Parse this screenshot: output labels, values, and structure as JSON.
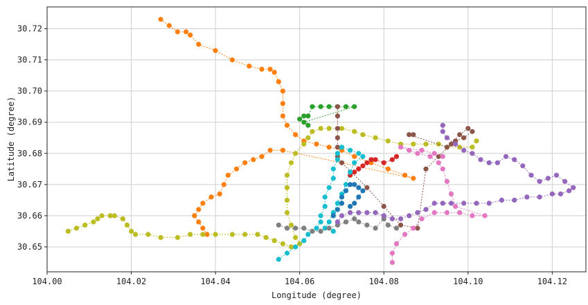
{
  "chart_data": {
    "type": "scatter",
    "title": "",
    "xlabel": "Longitude (degree)",
    "ylabel": "Latitude (degree)",
    "xlim": [
      104.0,
      104.128
    ],
    "ylim": [
      30.642,
      30.727
    ],
    "grid": true,
    "legend": "none",
    "x_ticks": [
      "104.00",
      "104.02",
      "104.04",
      "104.06",
      "104.08",
      "104.10",
      "104.12"
    ],
    "y_ticks": [
      "30.65",
      "30.66",
      "30.67",
      "30.68",
      "30.69",
      "30.70",
      "30.71",
      "30.72"
    ],
    "series": [
      {
        "color": "#ff7f0e",
        "points": [
          [
            104.027,
            30.723
          ],
          [
            104.029,
            30.721
          ],
          [
            104.031,
            30.719
          ],
          [
            104.033,
            30.719
          ],
          [
            104.034,
            30.718
          ],
          [
            104.036,
            30.715
          ],
          [
            104.04,
            30.713
          ],
          [
            104.044,
            30.71
          ],
          [
            104.048,
            30.708
          ],
          [
            104.051,
            30.707
          ],
          [
            104.053,
            30.707
          ],
          [
            104.054,
            30.706
          ],
          [
            104.055,
            30.703
          ],
          [
            104.056,
            30.7
          ],
          [
            104.056,
            30.696
          ],
          [
            104.056,
            30.692
          ],
          [
            104.057,
            30.689
          ],
          [
            104.059,
            30.686
          ],
          [
            104.061,
            30.684
          ],
          [
            104.064,
            30.683
          ],
          [
            104.067,
            30.682
          ],
          [
            104.07,
            30.681
          ],
          [
            104.073,
            30.679
          ],
          [
            104.077,
            30.677
          ],
          [
            104.081,
            30.675
          ],
          [
            104.085,
            30.673
          ],
          [
            104.087,
            30.672
          ],
          [
            104.056,
            30.681
          ],
          [
            104.053,
            30.681
          ],
          [
            104.051,
            30.679
          ],
          [
            104.049,
            30.678
          ],
          [
            104.047,
            30.677
          ],
          [
            104.045,
            30.675
          ],
          [
            104.043,
            30.673
          ],
          [
            104.042,
            30.67
          ],
          [
            104.041,
            30.667
          ],
          [
            104.039,
            30.666
          ],
          [
            104.037,
            30.664
          ],
          [
            104.036,
            30.662
          ],
          [
            104.035,
            30.66
          ],
          [
            104.036,
            30.658
          ],
          [
            104.037,
            30.656
          ],
          [
            104.038,
            30.654
          ]
        ]
      },
      {
        "color": "#bcbd22",
        "points": [
          [
            104.005,
            30.655
          ],
          [
            104.007,
            30.656
          ],
          [
            104.009,
            30.657
          ],
          [
            104.011,
            30.658
          ],
          [
            104.012,
            30.659
          ],
          [
            104.013,
            30.66
          ],
          [
            104.015,
            30.66
          ],
          [
            104.016,
            30.66
          ],
          [
            104.018,
            30.659
          ],
          [
            104.019,
            30.657
          ],
          [
            104.02,
            30.655
          ],
          [
            104.021,
            30.654
          ],
          [
            104.024,
            30.654
          ],
          [
            104.027,
            30.653
          ],
          [
            104.031,
            30.653
          ],
          [
            104.034,
            30.654
          ],
          [
            104.037,
            30.654
          ],
          [
            104.04,
            30.654
          ],
          [
            104.044,
            30.654
          ],
          [
            104.047,
            30.654
          ],
          [
            104.05,
            30.654
          ],
          [
            104.052,
            30.653
          ],
          [
            104.054,
            30.652
          ],
          [
            104.056,
            30.651
          ],
          [
            104.058,
            30.65
          ],
          [
            104.06,
            30.651
          ],
          [
            104.059,
            30.653
          ],
          [
            104.058,
            30.657
          ],
          [
            104.057,
            30.661
          ],
          [
            104.057,
            30.665
          ],
          [
            104.057,
            30.669
          ],
          [
            104.057,
            30.673
          ],
          [
            104.058,
            30.677
          ],
          [
            104.059,
            30.68
          ],
          [
            104.061,
            30.683
          ],
          [
            104.062,
            30.685
          ],
          [
            104.063,
            30.687
          ],
          [
            104.065,
            30.688
          ],
          [
            104.067,
            30.688
          ],
          [
            104.07,
            30.688
          ],
          [
            104.073,
            30.687
          ],
          [
            104.075,
            30.686
          ],
          [
            104.078,
            30.685
          ],
          [
            104.081,
            30.684
          ],
          [
            104.084,
            30.683
          ],
          [
            104.087,
            30.683
          ],
          [
            104.09,
            30.683
          ],
          [
            104.093,
            30.683
          ],
          [
            104.095,
            30.682
          ],
          [
            104.098,
            30.682
          ],
          [
            104.101,
            30.682
          ],
          [
            104.102,
            30.684
          ]
        ]
      },
      {
        "color": "#2ca02c",
        "points": [
          [
            104.06,
            30.691
          ],
          [
            104.061,
            30.692
          ],
          [
            104.062,
            30.692
          ],
          [
            104.063,
            30.695
          ],
          [
            104.065,
            30.695
          ],
          [
            104.067,
            30.695
          ],
          [
            104.069,
            30.695
          ],
          [
            104.071,
            30.695
          ],
          [
            104.073,
            30.695
          ],
          [
            104.061,
            30.69
          ],
          [
            104.062,
            30.689
          ]
        ]
      },
      {
        "color": "#8c564b",
        "points": [
          [
            104.069,
            30.695
          ],
          [
            104.069,
            30.692
          ],
          [
            104.069,
            30.688
          ],
          [
            104.069,
            30.685
          ],
          [
            104.069,
            30.682
          ],
          [
            104.069,
            30.679
          ],
          [
            104.07,
            30.677
          ],
          [
            104.076,
            30.669
          ],
          [
            104.08,
            30.663
          ],
          [
            104.084,
            30.657
          ],
          [
            104.088,
            30.656
          ],
          [
            104.09,
            30.675
          ],
          [
            104.093,
            30.679
          ],
          [
            104.096,
            30.683
          ],
          [
            104.098,
            30.686
          ],
          [
            104.1,
            30.688
          ],
          [
            104.101,
            30.687
          ],
          [
            104.099,
            30.685
          ],
          [
            104.097,
            30.684
          ],
          [
            104.095,
            30.682
          ],
          [
            104.086,
            30.686
          ],
          [
            104.087,
            30.686
          ]
        ]
      },
      {
        "color": "#d62728",
        "points": [
          [
            104.072,
            30.673
          ],
          [
            104.073,
            30.674
          ],
          [
            104.074,
            30.675
          ],
          [
            104.075,
            30.676
          ],
          [
            104.076,
            30.677
          ],
          [
            104.077,
            30.678
          ],
          [
            104.078,
            30.678
          ],
          [
            104.08,
            30.677
          ],
          [
            104.082,
            30.678
          ],
          [
            104.083,
            30.679
          ]
        ]
      },
      {
        "color": "#17becf",
        "points": [
          [
            104.055,
            30.646
          ],
          [
            104.057,
            30.648
          ],
          [
            104.059,
            30.65
          ],
          [
            104.061,
            30.652
          ],
          [
            104.062,
            30.654
          ],
          [
            104.064,
            30.656
          ],
          [
            104.065,
            30.658
          ],
          [
            104.065,
            30.66
          ],
          [
            104.066,
            30.663
          ],
          [
            104.066,
            30.666
          ],
          [
            104.067,
            30.669
          ],
          [
            104.068,
            30.672
          ],
          [
            104.068,
            30.675
          ],
          [
            104.069,
            30.678
          ],
          [
            104.069,
            30.68
          ],
          [
            104.07,
            30.682
          ],
          [
            104.072,
            30.681
          ],
          [
            104.074,
            30.68
          ],
          [
            104.075,
            30.679
          ],
          [
            104.073,
            30.677
          ],
          [
            104.072,
            30.674
          ],
          [
            104.071,
            30.67
          ],
          [
            104.07,
            30.667
          ],
          [
            104.069,
            30.664
          ],
          [
            104.068,
            30.661
          ],
          [
            104.067,
            30.658
          ],
          [
            104.066,
            30.656
          ],
          [
            104.068,
            30.655
          ]
        ]
      },
      {
        "color": "#1f77b4",
        "points": [
          [
            104.068,
            30.66
          ],
          [
            104.069,
            30.662
          ],
          [
            104.07,
            30.664
          ],
          [
            104.07,
            30.666
          ],
          [
            104.071,
            30.668
          ],
          [
            104.072,
            30.67
          ],
          [
            104.073,
            30.67
          ],
          [
            104.074,
            30.669
          ],
          [
            104.075,
            30.668
          ],
          [
            104.074,
            30.666
          ],
          [
            104.073,
            30.664
          ],
          [
            104.072,
            30.663
          ]
        ]
      },
      {
        "color": "#7f7f7f",
        "points": [
          [
            104.055,
            30.657
          ],
          [
            104.057,
            30.656
          ],
          [
            104.059,
            30.656
          ],
          [
            104.061,
            30.656
          ],
          [
            104.063,
            30.655
          ],
          [
            104.065,
            30.655
          ],
          [
            104.067,
            30.656
          ],
          [
            104.069,
            30.657
          ],
          [
            104.071,
            30.658
          ],
          [
            104.073,
            30.659
          ],
          [
            104.074,
            30.658
          ],
          [
            104.076,
            30.657
          ],
          [
            104.078,
            30.656
          ],
          [
            104.08,
            30.659
          ],
          [
            104.081,
            30.657
          ],
          [
            104.083,
            30.656
          ]
        ]
      },
      {
        "color": "#9467bd",
        "points": [
          [
            104.069,
            30.658
          ],
          [
            104.07,
            30.66
          ],
          [
            104.072,
            30.661
          ],
          [
            104.074,
            30.661
          ],
          [
            104.076,
            30.661
          ],
          [
            104.078,
            30.661
          ],
          [
            104.08,
            30.66
          ],
          [
            104.082,
            30.659
          ],
          [
            104.084,
            30.659
          ],
          [
            104.086,
            30.66
          ],
          [
            104.088,
            30.661
          ],
          [
            104.09,
            30.662
          ],
          [
            104.092,
            30.664
          ],
          [
            104.094,
            30.664
          ],
          [
            104.096,
            30.664
          ],
          [
            104.099,
            30.664
          ],
          [
            104.102,
            30.664
          ],
          [
            104.105,
            30.664
          ],
          [
            104.108,
            30.665
          ],
          [
            104.111,
            30.665
          ],
          [
            104.114,
            30.666
          ],
          [
            104.117,
            30.666
          ],
          [
            104.12,
            30.667
          ],
          [
            104.122,
            30.667
          ],
          [
            104.124,
            30.668
          ],
          [
            104.125,
            30.669
          ],
          [
            104.123,
            30.671
          ],
          [
            104.121,
            30.673
          ],
          [
            104.119,
            30.672
          ],
          [
            104.117,
            30.671
          ],
          [
            104.115,
            30.673
          ],
          [
            104.113,
            30.676
          ],
          [
            104.111,
            30.678
          ],
          [
            104.109,
            30.679
          ],
          [
            104.107,
            30.677
          ],
          [
            104.105,
            30.677
          ],
          [
            104.103,
            30.678
          ],
          [
            104.101,
            30.68
          ],
          [
            104.099,
            30.681
          ],
          [
            104.097,
            30.683
          ],
          [
            104.095,
            30.685
          ],
          [
            104.094,
            30.687
          ],
          [
            104.094,
            30.689
          ]
        ]
      },
      {
        "color": "#e377c2",
        "points": [
          [
            104.082,
            30.645
          ],
          [
            104.082,
            30.648
          ],
          [
            104.083,
            30.651
          ],
          [
            104.085,
            30.654
          ],
          [
            104.087,
            30.656
          ],
          [
            104.089,
            30.659
          ],
          [
            104.092,
            30.661
          ],
          [
            104.095,
            30.661
          ],
          [
            104.098,
            30.661
          ],
          [
            104.101,
            30.66
          ],
          [
            104.104,
            30.66
          ],
          [
            104.097,
            30.663
          ],
          [
            104.096,
            30.667
          ],
          [
            104.095,
            30.671
          ],
          [
            104.094,
            30.675
          ],
          [
            104.093,
            30.677
          ],
          [
            104.091,
            30.679
          ],
          [
            104.088,
            30.68
          ],
          [
            104.086,
            30.681
          ],
          [
            104.084,
            30.682
          ],
          [
            104.089,
            30.681
          ],
          [
            104.092,
            30.68
          ],
          [
            104.094,
            30.679
          ]
        ]
      }
    ]
  }
}
